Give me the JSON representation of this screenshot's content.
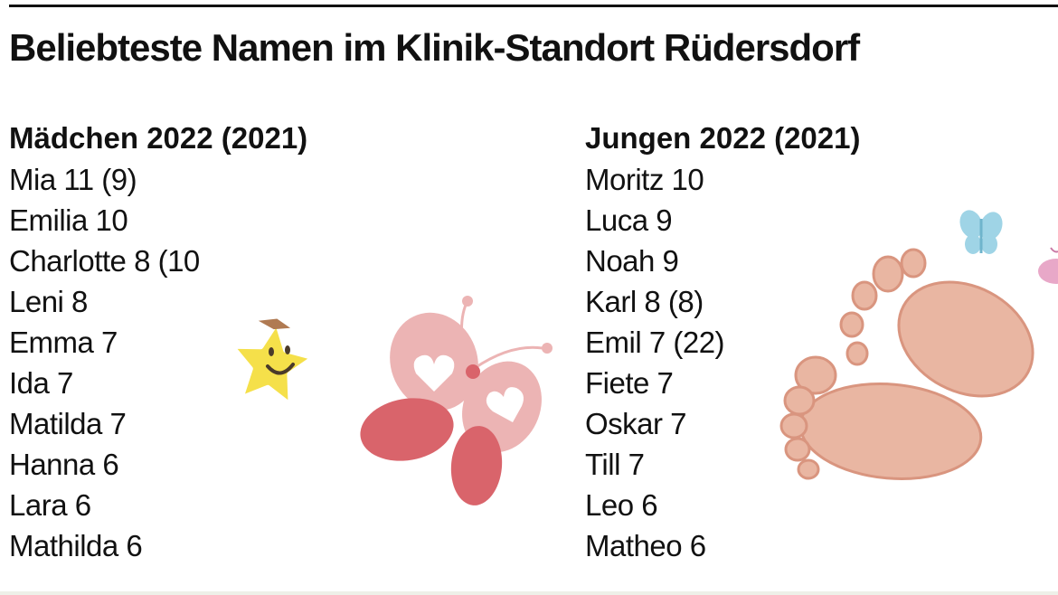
{
  "title": "Beliebteste Namen im Klinik-Standort Rüdersdorf",
  "girls": {
    "heading": "Mädchen 2022 (2021)",
    "items": [
      "Mia 11 (9)",
      "Emilia 10",
      "Charlotte 8 (10",
      "Leni 8",
      "Emma 7",
      "Ida 7",
      "Matilda 7",
      "Hanna 6",
      "Lara 6",
      "Mathilda 6"
    ]
  },
  "boys": {
    "heading": "Jungen 2022 (2021)",
    "items": [
      "Moritz 10",
      "Luca 9",
      "Noah 9",
      "Karl 8 (8)",
      "Emil 7 (22)",
      "Fiete 7",
      "Oskar 7",
      "Till 7",
      "Leo 6",
      "Matheo 6"
    ]
  },
  "decorations": {
    "star_icon": "smiling-star-icon",
    "butterfly_icon": "pink-butterfly-icon",
    "blue_butterfly_icon": "blue-butterfly-icon",
    "feet_icon": "baby-feet-icon"
  },
  "colors": {
    "text": "#111111",
    "star": "#f5e04a",
    "butterfly_dark": "#d9646b",
    "butterfly_light": "#ecb4b4",
    "feet": "#e9b6a2",
    "feet_outline": "#d9957f",
    "blue_butterfly": "#9fd4e6"
  }
}
